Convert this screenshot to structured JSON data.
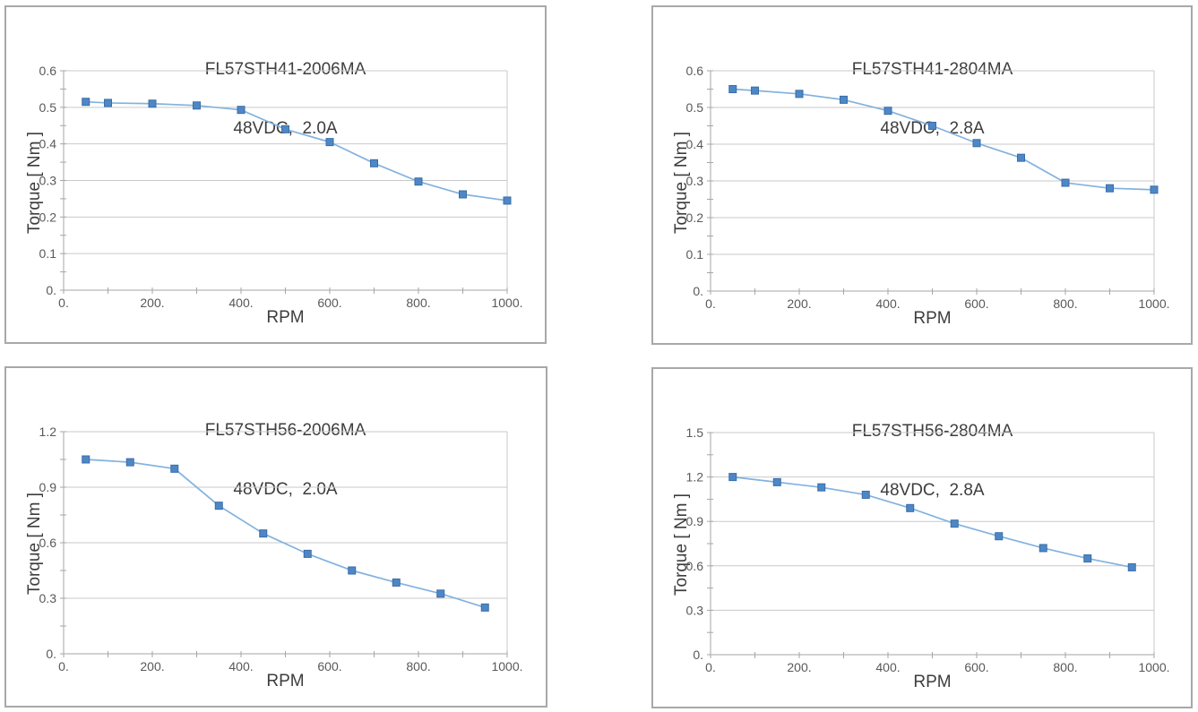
{
  "colors": {
    "panel_border": "#a8a8ab",
    "gridline": "#c9c9c9",
    "axis": "#a6a6a6",
    "tick_text": "#595959",
    "title_text": "#3d3d3d",
    "series_line": "#82b2de",
    "marker_fill": "#4e87c5",
    "marker_edge": "#3a6da8"
  },
  "chart_data": [
    {
      "type": "line",
      "marker": "square",
      "legend": "none",
      "grid": "horizontal-major",
      "title": "FL57STH41-2006MA",
      "subtitle": "48VDC,  2.0A",
      "xlabel": "RPM",
      "ylabel": "Torque [ Nm ]",
      "xlim": [
        0,
        1000
      ],
      "ylim": [
        0,
        0.6
      ],
      "x_major_ticks": [
        0,
        200,
        400,
        600,
        800,
        1000
      ],
      "x_minor_ticks": [
        100,
        300,
        500,
        700,
        900
      ],
      "x_tick_labels": [
        "0.",
        "200.",
        "400.",
        "600.",
        "800.",
        "1000."
      ],
      "y_major_ticks": [
        0,
        0.1,
        0.2,
        0.3,
        0.4,
        0.5,
        0.6
      ],
      "y_minor_ticks": [
        0.05,
        0.15,
        0.25,
        0.35,
        0.45,
        0.55
      ],
      "y_tick_labels": [
        "0.",
        "0.1",
        "0.2",
        "0.3",
        "0.4",
        "0.5",
        "0.6"
      ],
      "x": [
        50,
        100,
        200,
        300,
        400,
        500,
        600,
        700,
        800,
        900,
        1000
      ],
      "y": [
        0.515,
        0.512,
        0.51,
        0.505,
        0.493,
        0.44,
        0.405,
        0.347,
        0.297,
        0.262,
        0.245
      ]
    },
    {
      "type": "line",
      "marker": "square",
      "legend": "none",
      "grid": "horizontal-major",
      "title": "FL57STH41-2804MA",
      "subtitle": "48VDC,  2.8A",
      "xlabel": "RPM",
      "ylabel": "Torque [ Nm ]",
      "xlim": [
        0,
        1000
      ],
      "ylim": [
        0,
        0.6
      ],
      "x_major_ticks": [
        0,
        200,
        400,
        600,
        800,
        1000
      ],
      "x_minor_ticks": [
        100,
        300,
        500,
        700,
        900
      ],
      "x_tick_labels": [
        "0.",
        "200.",
        "400.",
        "600.",
        "800.",
        "1000."
      ],
      "y_major_ticks": [
        0,
        0.1,
        0.2,
        0.3,
        0.4,
        0.5,
        0.6
      ],
      "y_minor_ticks": [
        0.05,
        0.15,
        0.25,
        0.35,
        0.45,
        0.55
      ],
      "y_tick_labels": [
        "0.",
        "0.1",
        "0.2",
        "0.3",
        "0.4",
        "0.5",
        "0.6"
      ],
      "x": [
        50,
        100,
        200,
        300,
        400,
        500,
        600,
        700,
        800,
        900,
        1000
      ],
      "y": [
        0.55,
        0.546,
        0.537,
        0.521,
        0.491,
        0.45,
        0.403,
        0.363,
        0.295,
        0.28,
        0.276
      ]
    },
    {
      "type": "line",
      "marker": "square",
      "legend": "none",
      "grid": "horizontal-major",
      "title": "FL57STH56-2006MA",
      "subtitle": "48VDC,  2.0A",
      "xlabel": "RPM",
      "ylabel": "Torque [ Nm ]",
      "xlim": [
        0,
        1000
      ],
      "ylim": [
        0,
        1.2
      ],
      "x_major_ticks": [
        0,
        200,
        400,
        600,
        800,
        1000
      ],
      "x_minor_ticks": [
        100,
        300,
        500,
        700,
        900
      ],
      "x_tick_labels": [
        "0.",
        "200.",
        "400.",
        "600.",
        "800.",
        "1000."
      ],
      "y_major_ticks": [
        0,
        0.3,
        0.6,
        0.9,
        1.2
      ],
      "y_minor_ticks": [
        0.15,
        0.45,
        0.75,
        1.05
      ],
      "y_tick_labels": [
        "0.",
        "0.3",
        "0.6",
        "0.9",
        "1.2"
      ],
      "x": [
        50,
        150,
        250,
        350,
        450,
        550,
        650,
        750,
        850,
        950
      ],
      "y": [
        1.05,
        1.035,
        1.0,
        0.8,
        0.65,
        0.54,
        0.45,
        0.385,
        0.325,
        0.25
      ]
    },
    {
      "type": "line",
      "marker": "square",
      "legend": "none",
      "grid": "horizontal-major",
      "title": "FL57STH56-2804MA",
      "subtitle": "48VDC,  2.8A",
      "xlabel": "RPM",
      "ylabel": "Torque [ Nm ]",
      "xlim": [
        0,
        1000
      ],
      "ylim": [
        0,
        1.5
      ],
      "x_major_ticks": [
        0,
        200,
        400,
        600,
        800,
        1000
      ],
      "x_minor_ticks": [
        100,
        300,
        500,
        700,
        900
      ],
      "x_tick_labels": [
        "0.",
        "200.",
        "400.",
        "600.",
        "800.",
        "1000."
      ],
      "y_major_ticks": [
        0,
        0.3,
        0.6,
        0.9,
        1.2,
        1.5
      ],
      "y_minor_ticks": [
        0.15,
        0.45,
        0.75,
        1.05,
        1.35
      ],
      "y_tick_labels": [
        "0.",
        "0.3",
        "0.6",
        "0.9",
        "1.2",
        "1.5"
      ],
      "x": [
        50,
        150,
        250,
        350,
        450,
        550,
        650,
        750,
        850,
        950
      ],
      "y": [
        1.2,
        1.165,
        1.13,
        1.08,
        0.99,
        0.885,
        0.8,
        0.72,
        0.65,
        0.59
      ]
    }
  ]
}
